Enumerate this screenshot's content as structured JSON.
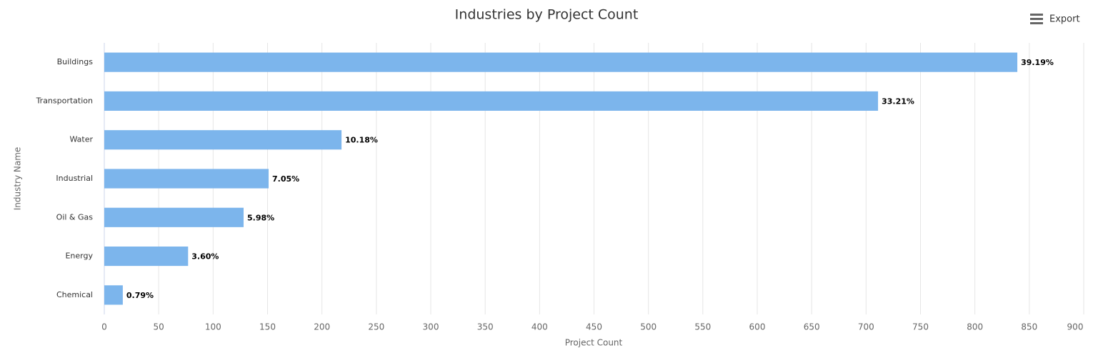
{
  "export": "Export",
  "chart_data": {
    "type": "bar",
    "orientation": "horizontal",
    "title": "Industries by Project Count",
    "xlabel": "Project Count",
    "ylabel": "Industry Name",
    "categories": [
      "Buildings",
      "Transportation",
      "Water",
      "Industrial",
      "Oil & Gas",
      "Energy",
      "Chemical"
    ],
    "values": [
      839,
      711,
      218,
      151,
      128,
      77,
      17
    ],
    "data_labels": [
      "39.19%",
      "33.21%",
      "10.18%",
      "7.05%",
      "5.98%",
      "3.60%",
      "0.79%"
    ],
    "color": "#7cb5ec",
    "xlim": [
      0,
      900
    ],
    "xticks": [
      0,
      50,
      100,
      150,
      200,
      250,
      300,
      350,
      400,
      450,
      500,
      550,
      600,
      650,
      700,
      750,
      800,
      850,
      900
    ],
    "grid": true
  }
}
